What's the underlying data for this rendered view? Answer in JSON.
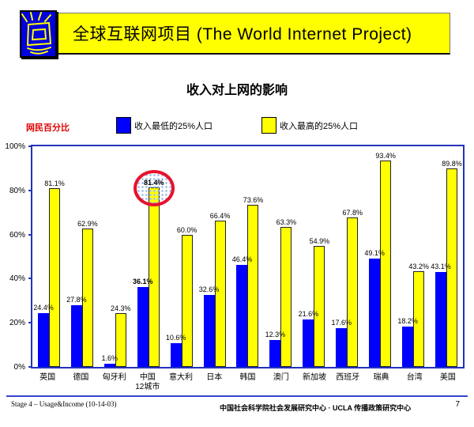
{
  "header": {
    "title": "全球互联网项目 (The World Internet Project)"
  },
  "slide": {
    "title": "收入对上网的影响"
  },
  "chart_data": {
    "type": "bar",
    "title": "收入对上网的影响",
    "ylabel": "网民百分比",
    "xlabel": "",
    "ylim": [
      0,
      100
    ],
    "yticks": [
      "0%",
      "20%",
      "40%",
      "60%",
      "80%",
      "100%"
    ],
    "grid": false,
    "legend_position": "top",
    "categories": [
      {
        "label": "英国"
      },
      {
        "label": "德国"
      },
      {
        "label": "匈牙利"
      },
      {
        "label": "中国",
        "label2": "12城市"
      },
      {
        "label": "意大利"
      },
      {
        "label": "日本"
      },
      {
        "label": "韩国"
      },
      {
        "label": "澳门"
      },
      {
        "label": "新加坡"
      },
      {
        "label": "西班牙"
      },
      {
        "label": "瑞典"
      },
      {
        "label": "台湾"
      },
      {
        "label": "美国"
      }
    ],
    "series": [
      {
        "name": "收入最低的25%人口",
        "color": "#0000ff",
        "values": [
          24.4,
          27.8,
          1.6,
          36.1,
          10.6,
          32.6,
          46.4,
          12.3,
          21.6,
          17.6,
          49.1,
          18.2,
          43.1
        ]
      },
      {
        "name": "收入最高的25%人口",
        "color": "#ffff00",
        "values": [
          81.1,
          62.9,
          24.3,
          81.4,
          60.0,
          66.4,
          73.6,
          63.3,
          54.9,
          67.8,
          93.4,
          43.2,
          89.8
        ]
      }
    ],
    "emphasis_category_index": 3,
    "annotations": [
      {
        "shape": "ellipse",
        "series_index": 1,
        "category_index": 3,
        "label": "81.4%",
        "color": "#e8112d"
      }
    ]
  },
  "colors": {
    "banner_bg": "#ffff00",
    "logo_bg": "#0000dd",
    "axis_blue": "#2233bb",
    "ylabel_red": "#e00000",
    "annotation_red": "#e8112d"
  },
  "footer": {
    "left": "Stage 4 – Usage&Income (10-14-03)",
    "right": "中国社会科学院社会发展研究中心 · UCLA 传播政策研究中心",
    "page": "7"
  }
}
